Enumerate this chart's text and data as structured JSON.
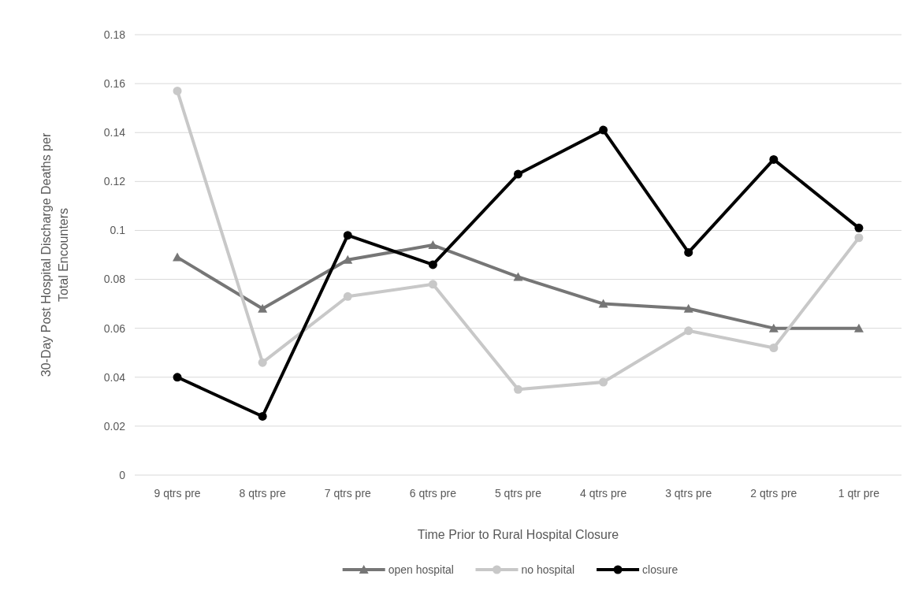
{
  "chart_data": {
    "type": "line",
    "xlabel": "Time Prior to Rural Hospital Closure",
    "ylabel": "30-Day Post Hospital Discharge Deaths per Total Encounters",
    "categories": [
      "9 qtrs pre",
      "8 qtrs pre",
      "7 qtrs pre",
      "6 qtrs pre",
      "5 qtrs pre",
      "4 qtrs pre",
      "3 qtrs pre",
      "2 qtrs pre",
      "1 qtr pre"
    ],
    "series": [
      {
        "name": "open hospital",
        "color": "#767676",
        "marker": "triangle",
        "values": [
          0.089,
          0.068,
          0.088,
          0.094,
          0.081,
          0.07,
          0.068,
          0.06,
          0.06
        ]
      },
      {
        "name": "no hospital",
        "color": "#c8c8c8",
        "marker": "circle",
        "values": [
          0.157,
          0.046,
          0.073,
          0.078,
          0.035,
          0.038,
          0.059,
          0.052,
          0.097
        ]
      },
      {
        "name": "closure",
        "color": "#000000",
        "marker": "circle",
        "values": [
          0.04,
          0.024,
          0.098,
          0.086,
          0.123,
          0.141,
          0.091,
          0.129,
          0.101
        ]
      }
    ],
    "ylim": [
      0,
      0.18
    ],
    "yticks": [
      0,
      0.02,
      0.04,
      0.06,
      0.08,
      {
        "value": 0.1,
        "label": "0.1"
      },
      0.12,
      0.14,
      0.16,
      0.18
    ],
    "grid": "y",
    "legend": "bottom",
    "line_style": "solid"
  }
}
